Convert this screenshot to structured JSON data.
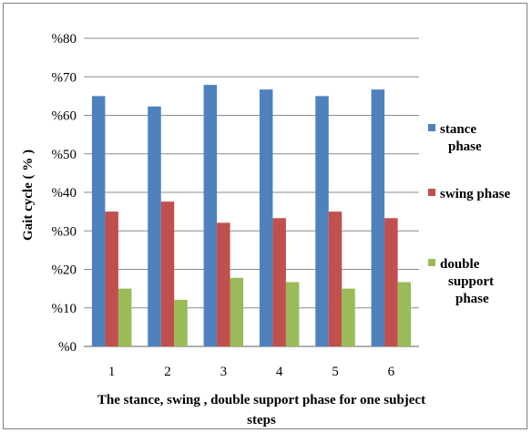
{
  "chart_data": {
    "type": "bar",
    "title": "",
    "xlabel": "The stance, swing , double support phase for one subject steps",
    "xlabel_lines": [
      "The stance, swing ,  double support phase for one subject",
      "steps"
    ],
    "ylabel": "Gait cycle ( % )",
    "categories": [
      "1",
      "2",
      "3",
      "4",
      "5",
      "6"
    ],
    "ylim": [
      0,
      80
    ],
    "yticks": [
      0,
      10,
      20,
      30,
      40,
      50,
      60,
      70,
      80
    ],
    "ytick_labels": [
      "%0",
      "%10",
      "%20",
      "%30",
      "%40",
      "%50",
      "%60",
      "%70",
      "%80"
    ],
    "grid": true,
    "legend_position": "right",
    "series": [
      {
        "name": "stance phase",
        "legend_lines": [
          "stance",
          "phase"
        ],
        "color": "#4f81bd",
        "values": [
          65,
          62.3,
          67.9,
          66.7,
          65,
          66.7
        ]
      },
      {
        "name": "swing phase",
        "legend_lines": [
          "swing phase"
        ],
        "color": "#c0504d",
        "values": [
          35,
          37.6,
          32.1,
          33.3,
          35,
          33.3
        ]
      },
      {
        "name": "double support phase",
        "legend_lines": [
          "double",
          "support",
          "phase"
        ],
        "color": "#9bbb59",
        "values": [
          15,
          12.1,
          17.8,
          16.7,
          15,
          16.7
        ]
      }
    ]
  }
}
